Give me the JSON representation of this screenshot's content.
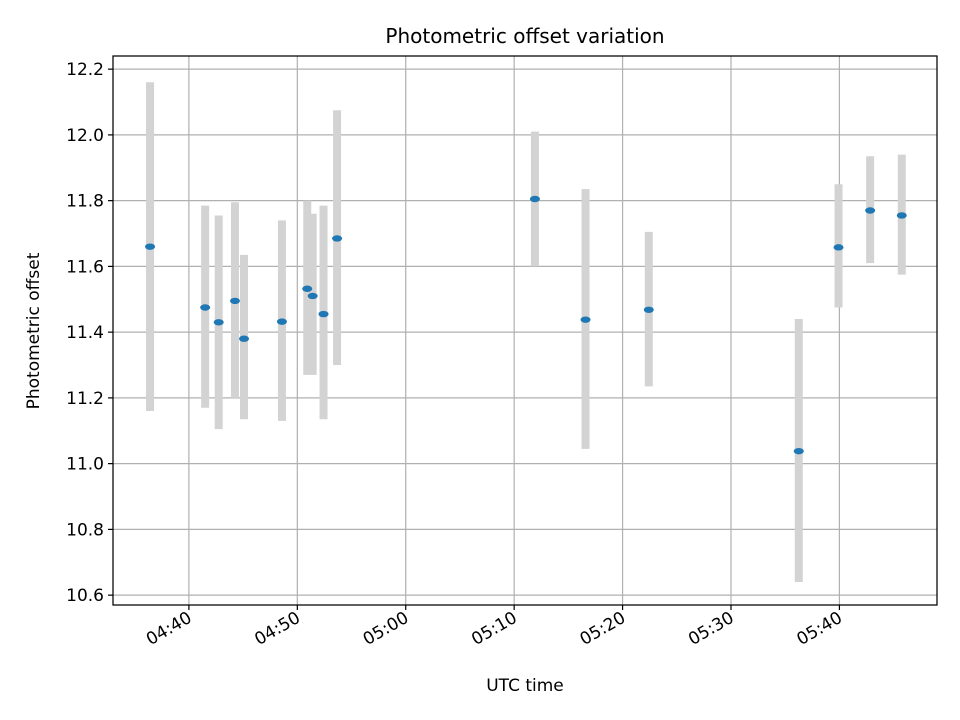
{
  "chart_data": {
    "type": "scatter",
    "title": "Photometric offset variation",
    "xlabel": "UTC time",
    "ylabel": "Photometric offset",
    "xlim": [
      "04:33:00",
      "05:49:00"
    ],
    "ylim": [
      10.57,
      12.24
    ],
    "grid": true,
    "x_ticks": [
      "04:40",
      "04:50",
      "05:00",
      "05:10",
      "05:20",
      "05:30",
      "05:40"
    ],
    "y_ticks": [
      "10.6",
      "10.8",
      "11.0",
      "11.2",
      "11.4",
      "11.6",
      "11.8",
      "12.0",
      "12.2"
    ],
    "colors": {
      "marker": "#1f77b4",
      "errorbar": "#d3d3d3",
      "grid": "#b0b0b0"
    },
    "points": [
      {
        "x": "04:36:25",
        "y": 11.66,
        "ylow": 11.16,
        "yhigh": 12.16
      },
      {
        "x": "04:41:30",
        "y": 11.475,
        "ylow": 11.17,
        "yhigh": 11.785
      },
      {
        "x": "04:42:45",
        "y": 11.43,
        "ylow": 11.105,
        "yhigh": 11.755
      },
      {
        "x": "04:44:15",
        "y": 11.495,
        "ylow": 11.2,
        "yhigh": 11.795
      },
      {
        "x": "04:45:05",
        "y": 11.38,
        "ylow": 11.135,
        "yhigh": 11.635
      },
      {
        "x": "04:48:35",
        "y": 11.432,
        "ylow": 11.13,
        "yhigh": 11.74
      },
      {
        "x": "04:50:55",
        "y": 11.532,
        "ylow": 11.27,
        "yhigh": 11.8
      },
      {
        "x": "04:51:25",
        "y": 11.51,
        "ylow": 11.27,
        "yhigh": 11.76
      },
      {
        "x": "04:52:25",
        "y": 11.455,
        "ylow": 11.135,
        "yhigh": 11.785
      },
      {
        "x": "04:53:40",
        "y": 11.685,
        "ylow": 11.3,
        "yhigh": 12.075
      },
      {
        "x": "05:11:55",
        "y": 11.805,
        "ylow": 11.6,
        "yhigh": 12.01
      },
      {
        "x": "05:16:35",
        "y": 11.438,
        "ylow": 11.045,
        "yhigh": 11.835
      },
      {
        "x": "05:22:25",
        "y": 11.468,
        "ylow": 11.235,
        "yhigh": 11.705
      },
      {
        "x": "05:36:15",
        "y": 11.038,
        "ylow": 10.64,
        "yhigh": 11.44
      },
      {
        "x": "05:39:55",
        "y": 11.658,
        "ylow": 11.475,
        "yhigh": 11.85
      },
      {
        "x": "05:42:50",
        "y": 11.77,
        "ylow": 11.61,
        "yhigh": 11.935
      },
      {
        "x": "05:45:45",
        "y": 11.755,
        "ylow": 11.575,
        "yhigh": 11.94
      }
    ]
  }
}
